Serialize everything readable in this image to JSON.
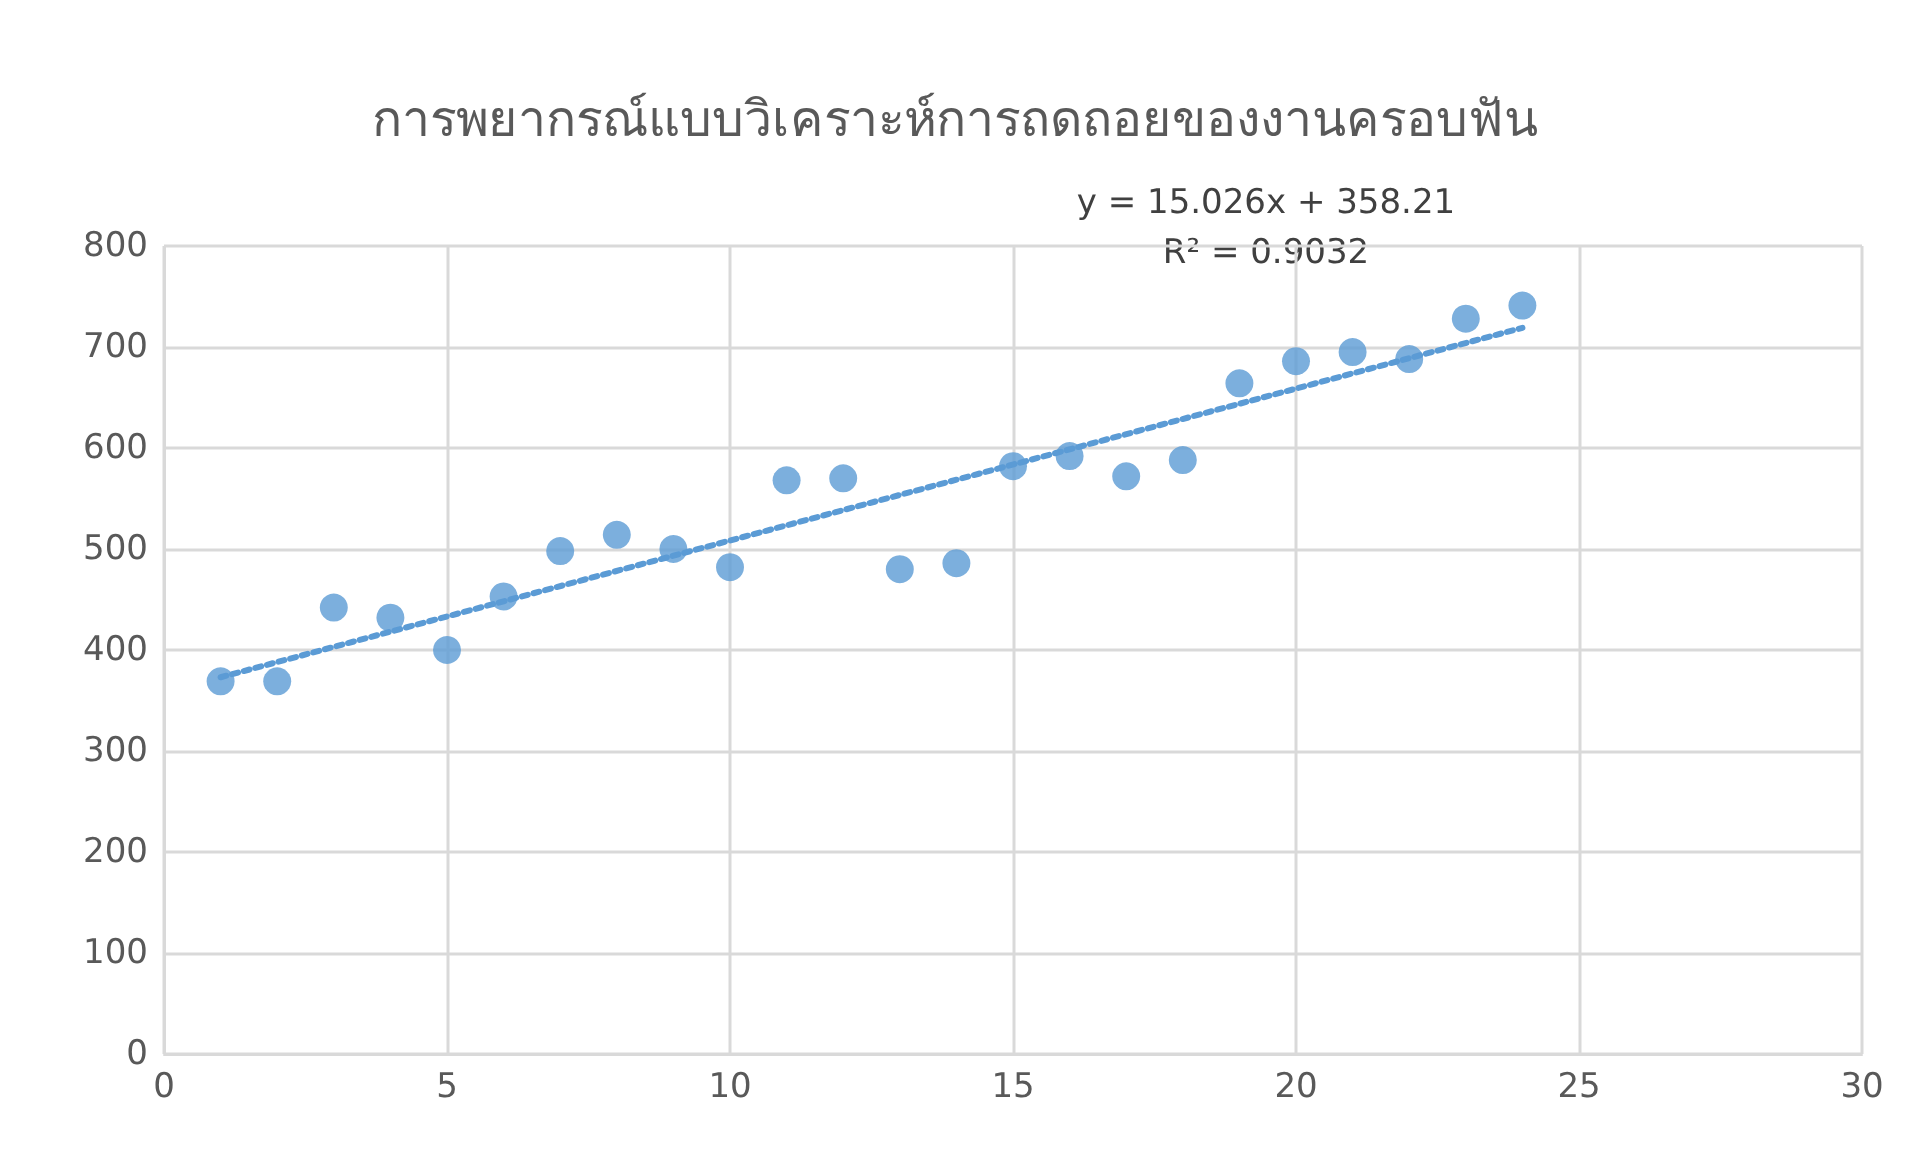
{
  "chart_data": {
    "type": "scatter",
    "title": "การพยากรณ์แบบวิเคราะห์การถดถอยของงานครอบฟัน",
    "annotations": [
      "y = 15.026x + 358.21",
      "R² = 0.9032"
    ],
    "xlim": [
      0,
      30
    ],
    "xticks": [
      0,
      5,
      10,
      15,
      20,
      25,
      30
    ],
    "ylim": [
      0,
      800
    ],
    "yticks": [
      0,
      100,
      200,
      300,
      400,
      500,
      600,
      700,
      800
    ],
    "grid": true,
    "series": [
      {
        "color": "#5b9bd5",
        "marker": "circle",
        "x": [
          1,
          2,
          3,
          4,
          5,
          6,
          7,
          8,
          9,
          10,
          11,
          12,
          13,
          14,
          15,
          16,
          17,
          18,
          19,
          20,
          21,
          22,
          23,
          24
        ],
        "values": [
          369,
          369,
          442,
          432,
          400,
          453,
          498,
          514,
          500,
          482,
          568,
          570,
          480,
          486,
          582,
          592,
          572,
          588,
          664,
          686,
          695,
          688,
          728,
          741
        ]
      },
      {
        "type": "line",
        "color": "#5b9bd5",
        "marker": "none",
        "line_style": "dotted",
        "x": [
          1,
          24
        ],
        "values": [
          373,
          719
        ]
      }
    ]
  }
}
